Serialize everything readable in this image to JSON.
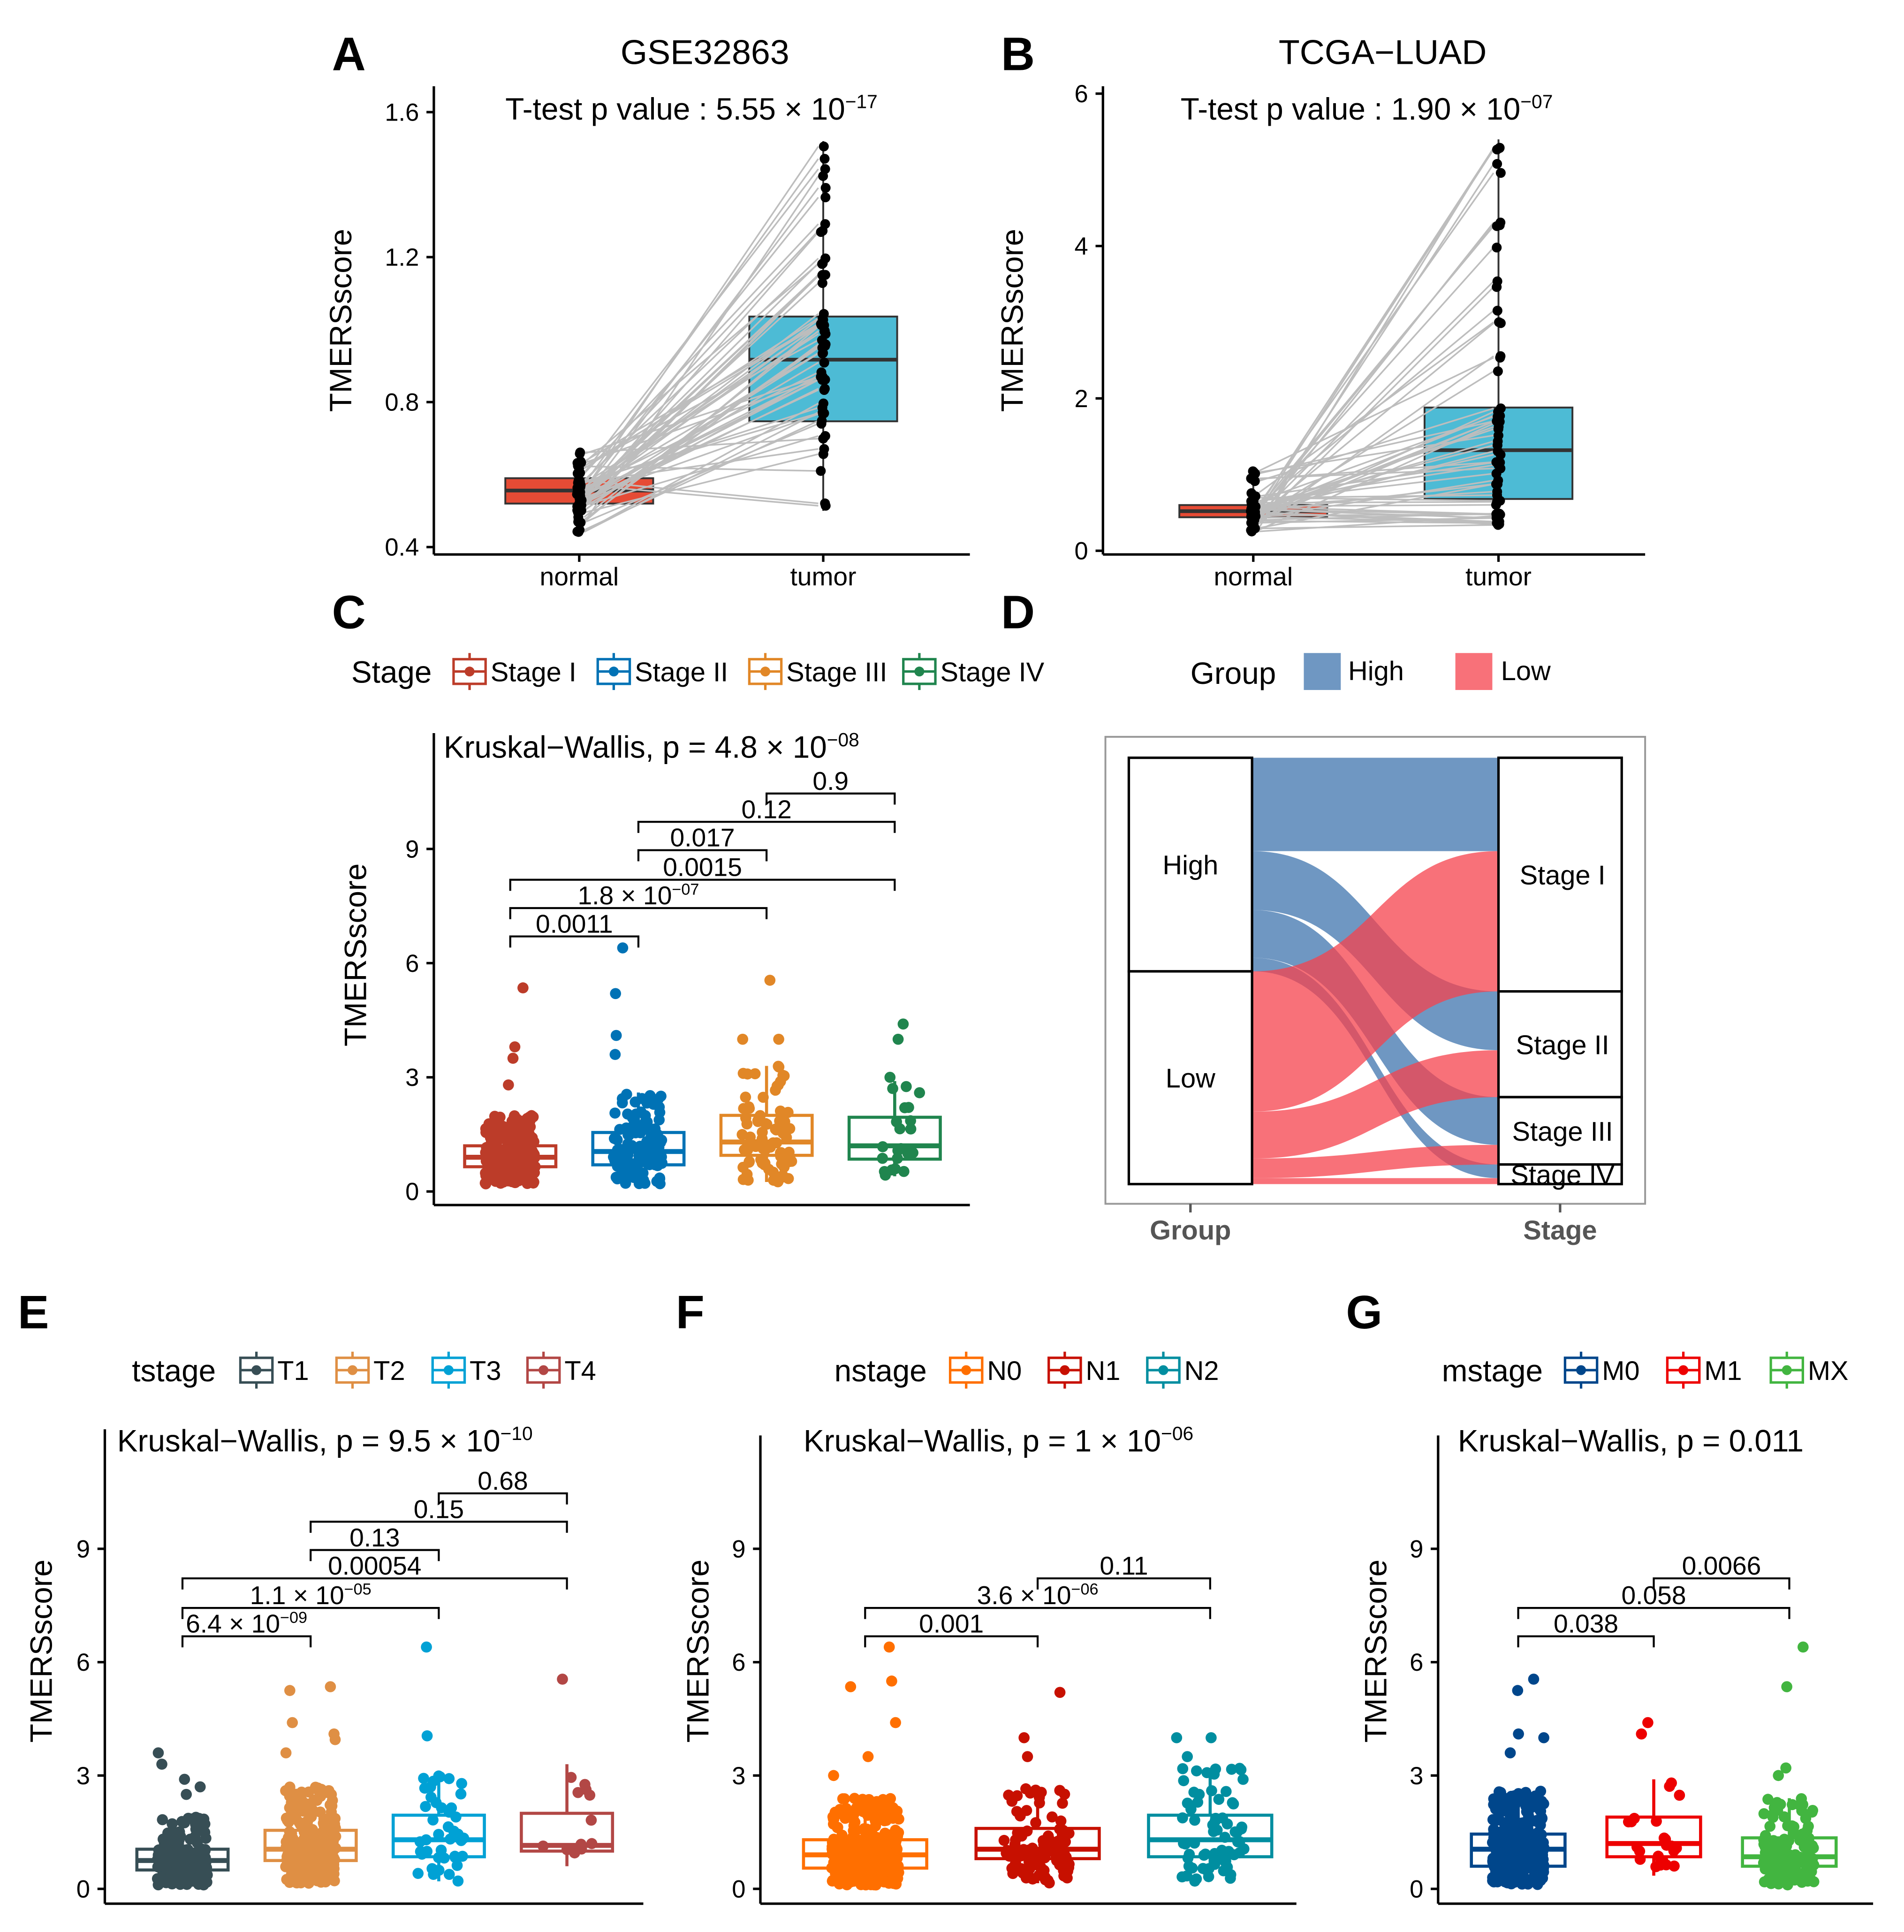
{
  "figure": {
    "panel_labels": [
      "A",
      "B",
      "C",
      "D",
      "E",
      "F",
      "G"
    ]
  },
  "chart_data": [
    {
      "panel": "A",
      "type": "box-paired",
      "title": "GSE32863",
      "annotation": {
        "base": "T-test p value :  5.55 × 10",
        "exp": "−17"
      },
      "ylabel": "TMERSscore",
      "yticks": [
        "0.4",
        "0.8",
        "1.2",
        "1.6"
      ],
      "ylim": [
        0.4,
        1.6
      ],
      "categories": [
        "normal",
        "tumor"
      ],
      "colors": [
        "#E64B35",
        "#4DBBD5"
      ],
      "boxes": [
        {
          "min": 0.44,
          "q1": 0.52,
          "median": 0.556,
          "q3": 0.59,
          "max": 0.67
        },
        {
          "min": 0.5,
          "q1": 0.747,
          "median": 0.917,
          "q3": 1.036,
          "max": 1.52
        }
      ]
    },
    {
      "panel": "B",
      "type": "box-paired",
      "title": "TCGA−LUAD",
      "annotation": {
        "base": "T-test p value :  1.90 × 10",
        "exp": "−07"
      },
      "ylabel": "TMERSscore",
      "yticks": [
        "0",
        "2",
        "4",
        "6"
      ],
      "ylim": [
        0,
        6
      ],
      "categories": [
        "normal",
        "tumor"
      ],
      "colors": [
        "#E64B35",
        "#4DBBD5"
      ],
      "boxes": [
        {
          "min": 0.25,
          "q1": 0.44,
          "median": 0.52,
          "q3": 0.6,
          "max": 1.05
        },
        {
          "min": 0.3,
          "q1": 0.68,
          "median": 1.32,
          "q3": 1.88,
          "max": 5.4
        }
      ]
    },
    {
      "panel": "C",
      "type": "box-jitter",
      "legend_title": "Stage",
      "categories": [
        "Stage I",
        "Stage II",
        "Stage III",
        "Stage IV"
      ],
      "colors": [
        "#BC3C29",
        "#0072B5",
        "#E18727",
        "#20854E"
      ],
      "test": {
        "base": "Kruskal−Wallis, p = 4.8 × 10",
        "exp": "−08"
      },
      "ylabel": "TMERSscore",
      "yticks": [
        "0",
        "3",
        "6",
        "9"
      ],
      "boxes": [
        {
          "min": 0.2,
          "q1": 0.65,
          "median": 0.9,
          "q3": 1.2,
          "max": 2.0,
          "outliers": [
            5.35,
            3.8,
            3.5,
            2.8
          ]
        },
        {
          "min": 0.2,
          "q1": 0.7,
          "median": 1.05,
          "q3": 1.55,
          "max": 2.6,
          "outliers": [
            6.4,
            5.2,
            4.1,
            3.6
          ]
        },
        {
          "min": 0.25,
          "q1": 0.95,
          "median": 1.3,
          "q3": 2.0,
          "max": 3.3,
          "outliers": [
            5.55,
            4.0,
            4.0
          ]
        },
        {
          "min": 0.4,
          "q1": 0.85,
          "median": 1.2,
          "q3": 1.95,
          "max": 2.9,
          "outliers": [
            4.4,
            4.0,
            3.0
          ]
        }
      ],
      "comparisons": [
        {
          "pair": [
            0,
            1
          ],
          "p": {
            "base": "0.0011",
            "exp": ""
          }
        },
        {
          "pair": [
            0,
            2
          ],
          "p": {
            "base": "1.8 × 10",
            "exp": "−07"
          }
        },
        {
          "pair": [
            0,
            3
          ],
          "p": {
            "base": "0.0015",
            "exp": ""
          }
        },
        {
          "pair": [
            1,
            2
          ],
          "p": {
            "base": "0.017",
            "exp": ""
          }
        },
        {
          "pair": [
            1,
            3
          ],
          "p": {
            "base": "0.12",
            "exp": ""
          }
        },
        {
          "pair": [
            2,
            3
          ],
          "p": {
            "base": "0.9",
            "exp": ""
          }
        }
      ]
    },
    {
      "panel": "D",
      "type": "sankey",
      "legend_title": "Group",
      "legend": [
        {
          "label": "High",
          "color": "#3F74AE"
        },
        {
          "label": "Low",
          "color": "#F5424C"
        }
      ],
      "left_nodes": [
        "High",
        "Low"
      ],
      "right_nodes": [
        "Stage I",
        "Stage II",
        "Stage III",
        "Stage IV"
      ],
      "axis_labels": [
        "Group",
        "Stage"
      ],
      "flows_percent": [
        {
          "from": "High",
          "to": "Stage I",
          "value": 21.9
        },
        {
          "from": "High",
          "to": "Stage II",
          "value": 13.8
        },
        {
          "from": "High",
          "to": "Stage III",
          "value": 11.2
        },
        {
          "from": "High",
          "to": "Stage IV",
          "value": 3.2
        },
        {
          "from": "Low",
          "to": "Stage I",
          "value": 32.9
        },
        {
          "from": "Low",
          "to": "Stage II",
          "value": 11.0
        },
        {
          "from": "Low",
          "to": "Stage III",
          "value": 4.6
        },
        {
          "from": "Low",
          "to": "Stage IV",
          "value": 1.4
        }
      ]
    },
    {
      "panel": "E",
      "type": "box-jitter",
      "legend_title": "tstage",
      "categories": [
        "T1",
        "T2",
        "T3",
        "T4"
      ],
      "colors": [
        "#374E55",
        "#DF8F44",
        "#00A1D5",
        "#B24745"
      ],
      "test": {
        "base": "Kruskal−Wallis, p = 9.5 × 10",
        "exp": "−10"
      },
      "ylabel": "TMERSscore",
      "yticks": [
        "0",
        "3",
        "6",
        "9"
      ],
      "boxes": [
        {
          "min": 0.1,
          "q1": 0.5,
          "median": 0.75,
          "q3": 1.05,
          "max": 1.9,
          "outliers": [
            3.6,
            3.3,
            2.9,
            2.7,
            2.5
          ]
        },
        {
          "min": 0.15,
          "q1": 0.75,
          "median": 1.05,
          "q3": 1.55,
          "max": 2.7,
          "outliers": [
            5.35,
            5.25,
            4.4,
            4.1,
            3.95,
            3.6
          ]
        },
        {
          "min": 0.2,
          "q1": 0.85,
          "median": 1.3,
          "q3": 1.95,
          "max": 3.0,
          "outliers": [
            6.4,
            4.05
          ]
        },
        {
          "min": 0.6,
          "q1": 1.0,
          "median": 1.15,
          "q3": 2.0,
          "max": 3.3,
          "outliers": [
            5.55,
            2.95
          ]
        }
      ],
      "comparisons": [
        {
          "pair": [
            0,
            1
          ],
          "p": {
            "base": "6.4 × 10",
            "exp": "−09"
          }
        },
        {
          "pair": [
            0,
            2
          ],
          "p": {
            "base": "1.1 × 10",
            "exp": "−05"
          }
        },
        {
          "pair": [
            0,
            3
          ],
          "p": {
            "base": "0.00054",
            "exp": ""
          }
        },
        {
          "pair": [
            1,
            2
          ],
          "p": {
            "base": "0.13",
            "exp": ""
          }
        },
        {
          "pair": [
            1,
            3
          ],
          "p": {
            "base": "0.15",
            "exp": ""
          }
        },
        {
          "pair": [
            2,
            3
          ],
          "p": {
            "base": "0.68",
            "exp": ""
          }
        }
      ]
    },
    {
      "panel": "F",
      "type": "box-jitter",
      "legend_title": "nstage",
      "categories": [
        "N0",
        "N1",
        "N2"
      ],
      "colors": [
        "#FF6F00",
        "#C71000",
        "#008EA0"
      ],
      "test": {
        "base": "Kruskal−Wallis, p = 1 × 10",
        "exp": "−06"
      },
      "ylabel": "TMERSscore",
      "yticks": [
        "0",
        "3",
        "6",
        "9"
      ],
      "boxes": [
        {
          "min": 0.1,
          "q1": 0.55,
          "median": 0.9,
          "q3": 1.3,
          "max": 2.4,
          "outliers": [
            6.4,
            5.5,
            5.35,
            4.4,
            3.5,
            3.0
          ]
        },
        {
          "min": 0.15,
          "q1": 0.8,
          "median": 1.05,
          "q3": 1.6,
          "max": 2.7,
          "outliers": [
            5.2,
            4.0,
            3.5
          ]
        },
        {
          "min": 0.2,
          "q1": 0.85,
          "median": 1.3,
          "q3": 1.95,
          "max": 3.2,
          "outliers": [
            4.0,
            4.0,
            3.5
          ]
        }
      ],
      "comparisons": [
        {
          "pair": [
            0,
            1
          ],
          "p": {
            "base": "0.001",
            "exp": ""
          }
        },
        {
          "pair": [
            0,
            2
          ],
          "p": {
            "base": "3.6 × 10",
            "exp": "−06"
          }
        },
        {
          "pair": [
            1,
            2
          ],
          "p": {
            "base": "0.11",
            "exp": ""
          }
        }
      ]
    },
    {
      "panel": "G",
      "type": "box-jitter",
      "legend_title": "mstage",
      "categories": [
        "M0",
        "M1",
        "MX"
      ],
      "colors": [
        "#00468B",
        "#ED0000",
        "#42B540"
      ],
      "test": {
        "base": "Kruskal−Wallis, p = 0.011",
        "exp": ""
      },
      "ylabel": "TMERSscore",
      "yticks": [
        "0",
        "3",
        "6",
        "9"
      ],
      "boxes": [
        {
          "min": 0.1,
          "q1": 0.6,
          "median": 1.05,
          "q3": 1.45,
          "max": 2.6,
          "outliers": [
            5.55,
            5.25,
            4.1,
            4.0,
            3.6
          ]
        },
        {
          "min": 0.35,
          "q1": 0.85,
          "median": 1.2,
          "q3": 1.9,
          "max": 2.9,
          "outliers": [
            4.4,
            4.1
          ]
        },
        {
          "min": 0.1,
          "q1": 0.6,
          "median": 0.85,
          "q3": 1.35,
          "max": 2.4,
          "outliers": [
            6.4,
            5.35,
            3.2,
            3.0
          ]
        }
      ],
      "comparisons": [
        {
          "pair": [
            0,
            1
          ],
          "p": {
            "base": "0.038",
            "exp": ""
          }
        },
        {
          "pair": [
            0,
            2
          ],
          "p": {
            "base": "0.058",
            "exp": ""
          }
        },
        {
          "pair": [
            1,
            2
          ],
          "p": {
            "base": "0.0066",
            "exp": ""
          }
        }
      ]
    }
  ]
}
